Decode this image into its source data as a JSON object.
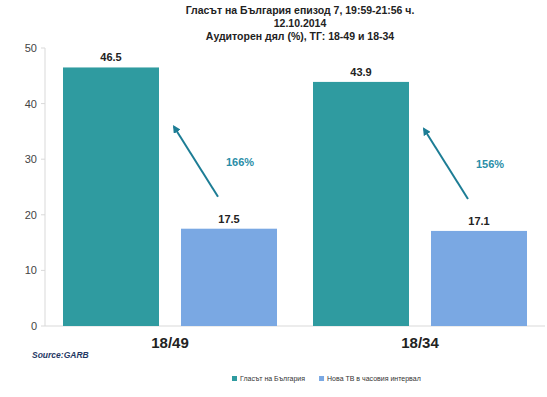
{
  "chart_data": {
    "type": "bar",
    "title": [
      "Гласът на България епизод 7, 19:59-21:56 ч.",
      "12.10.2014",
      "Аудиторен дял (%), ТГ: 18-49 и 18-34"
    ],
    "categories": [
      "18/49",
      "18/34"
    ],
    "series": [
      {
        "name": "Гласът на България",
        "color": "#2f9ba0",
        "values": [
          46.5,
          43.9
        ]
      },
      {
        "name": "Нова ТВ в часовия интервал",
        "color": "#7aa8e3",
        "values": [
          17.5,
          17.1
        ]
      }
    ],
    "ylim": [
      0,
      50
    ],
    "yticks": [
      0,
      10,
      20,
      30,
      40,
      50
    ],
    "grid": false,
    "data_labels": true,
    "legend": "bottom",
    "annotations": [
      "166%",
      "156%"
    ],
    "source": "Source:GARB"
  }
}
